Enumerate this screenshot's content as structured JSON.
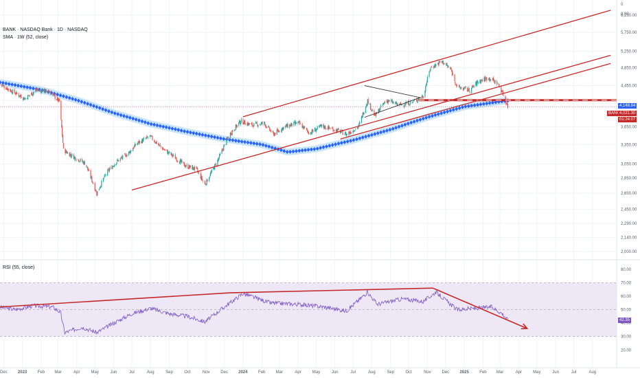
{
  "header": {
    "symbol_line": "BANK · NASDAQ Bank · 1D · NASDAQ",
    "sma_line": "SMA · 1W (52, close)",
    "rsi_line": "RSI (55, close)"
  },
  "badges": {
    "level_price": "4,148.84",
    "symbol": "BANK",
    "last_price": "4,021.30",
    "countdown": "01:24:07",
    "rsi_value": "42.35"
  },
  "colors": {
    "candle_up": "#26a69a",
    "candle_down": "#ef5350",
    "sma": "#2962ff",
    "sma_halo": "#bbdefb",
    "trendline": "#c62828",
    "triangle": "#212121",
    "rsi_line": "#7e57c2",
    "rsi_band": "#ede7f6",
    "grid": "#f0f3fa",
    "axis_text": "#5a5e6b"
  },
  "chart_data": [
    {
      "type": "candlestick",
      "title": "BANK · NASDAQ Bank · 1D · NASDAQ",
      "y_scale": "log",
      "price_ticks": [
        "6,250.00",
        "5,750.00",
        "5,250.00",
        "4,850.00",
        "4,450.00",
        "4,148.84",
        "4,021.30",
        "3,650.00",
        "3,350.00",
        "3,050.00",
        "2,850.00",
        "2,650.00",
        "2,450.00",
        "2,290.00",
        "2,140.00",
        "2,000.00",
        "0.00"
      ],
      "x_ticks": [
        "Dec",
        "2023",
        "Feb",
        "Mar",
        "Apr",
        "May",
        "Jun",
        "Jul",
        "Aug",
        "Sep",
        "Oct",
        "Nov",
        "Dec",
        "2024",
        "Feb",
        "Mar",
        "Apr",
        "May",
        "Jun",
        "Jul",
        "Aug",
        "Sep",
        "Oct",
        "Nov",
        "Dec",
        "2025",
        "Feb",
        "Mar",
        "Apr",
        "May",
        "Jun",
        "Jul",
        "Aug"
      ],
      "x_months": [
        "2022-12",
        "2023-01",
        "2023-02",
        "2023-03",
        "2023-04",
        "2023-05",
        "2023-06",
        "2023-07",
        "2023-08",
        "2023-09",
        "2023-10",
        "2023-11",
        "2023-12",
        "2024-01",
        "2024-02",
        "2024-03",
        "2024-04",
        "2024-05",
        "2024-06",
        "2024-07",
        "2024-08",
        "2024-09",
        "2024-10",
        "2024-11",
        "2024-12",
        "2025-01",
        "2025-02",
        "2025-03",
        "2025-04",
        "2025-05",
        "2025-06",
        "2025-07",
        "2025-08"
      ],
      "close_path": [
        [
          "2022-11-25",
          4480
        ],
        [
          "2022-12-15",
          4330
        ],
        [
          "2023-01-05",
          4180
        ],
        [
          "2023-01-25",
          4360
        ],
        [
          "2023-02-15",
          4320
        ],
        [
          "2023-03-03",
          4120
        ],
        [
          "2023-03-10",
          3260
        ],
        [
          "2023-03-28",
          3150
        ],
        [
          "2023-04-15",
          3060
        ],
        [
          "2023-05-04",
          2650
        ],
        [
          "2023-05-20",
          2920
        ],
        [
          "2023-06-05",
          3080
        ],
        [
          "2023-06-25",
          3210
        ],
        [
          "2023-07-10",
          3370
        ],
        [
          "2023-07-31",
          3480
        ],
        [
          "2023-08-20",
          3290
        ],
        [
          "2023-09-10",
          3150
        ],
        [
          "2023-09-28",
          3020
        ],
        [
          "2023-10-15",
          2980
        ],
        [
          "2023-10-30",
          2760
        ],
        [
          "2023-11-20",
          3100
        ],
        [
          "2023-12-10",
          3520
        ],
        [
          "2023-12-28",
          3750
        ],
        [
          "2024-01-15",
          3680
        ],
        [
          "2024-02-05",
          3710
        ],
        [
          "2024-02-20",
          3520
        ],
        [
          "2024-03-10",
          3650
        ],
        [
          "2024-04-01",
          3720
        ],
        [
          "2024-04-20",
          3540
        ],
        [
          "2024-05-10",
          3660
        ],
        [
          "2024-06-01",
          3600
        ],
        [
          "2024-06-20",
          3520
        ],
        [
          "2024-07-10",
          3650
        ],
        [
          "2024-07-25",
          4140
        ],
        [
          "2024-08-06",
          3840
        ],
        [
          "2024-08-25",
          4150
        ],
        [
          "2024-09-15",
          4050
        ],
        [
          "2024-10-05",
          4100
        ],
        [
          "2024-10-25",
          4230
        ],
        [
          "2024-11-06",
          4850
        ],
        [
          "2024-11-25",
          5000
        ],
        [
          "2024-12-10",
          4800
        ],
        [
          "2024-12-20",
          4420
        ],
        [
          "2025-01-10",
          4350
        ],
        [
          "2025-01-25",
          4550
        ],
        [
          "2025-02-10",
          4620
        ],
        [
          "2025-02-25",
          4500
        ],
        [
          "2025-03-05",
          4300
        ],
        [
          "2025-03-14",
          4021.3
        ]
      ],
      "sma_1w_52": [
        [
          "2022-11-25",
          4520
        ],
        [
          "2023-02-01",
          4360
        ],
        [
          "2023-04-01",
          4150
        ],
        [
          "2023-06-01",
          3900
        ],
        [
          "2023-08-01",
          3700
        ],
        [
          "2023-10-01",
          3560
        ],
        [
          "2023-12-01",
          3440
        ],
        [
          "2024-02-01",
          3350
        ],
        [
          "2024-03-15",
          3230
        ],
        [
          "2024-05-01",
          3280
        ],
        [
          "2024-07-01",
          3420
        ],
        [
          "2024-09-01",
          3600
        ],
        [
          "2024-11-01",
          3820
        ],
        [
          "2025-01-01",
          4020
        ],
        [
          "2025-03-14",
          4140
        ]
      ],
      "horizontal_level": 4148.84,
      "channel_lines": [
        {
          "from": [
            "2024-01-01",
            3830
          ],
          "to": [
            "2025-08-31",
            6400
          ]
        },
        {
          "from": [
            "2023-07-01",
            2690
          ],
          "to": [
            "2025-08-31",
            5150
          ]
        },
        {
          "from": [
            "2024-06-10",
            3440
          ],
          "to": [
            "2025-08-31",
            4950
          ]
        }
      ],
      "triangle_lines": [
        {
          "from": [
            "2024-07-20",
            4450
          ],
          "to": [
            "2024-10-20",
            4200
          ]
        },
        {
          "from": [
            "2024-07-20",
            3820
          ],
          "to": [
            "2024-10-20",
            4200
          ]
        }
      ]
    },
    {
      "type": "line",
      "title": "RSI (55, close)",
      "series": [
        {
          "name": "RSI (55, close)",
          "last": 42.35
        }
      ],
      "y_ticks": [
        80,
        70,
        60,
        50,
        40,
        30,
        20
      ],
      "ylim": [
        12,
        86
      ],
      "band": [
        30,
        70
      ],
      "rsi_path": [
        [
          "2022-11-25",
          52
        ],
        [
          "2022-12-20",
          50
        ],
        [
          "2023-01-20",
          53
        ],
        [
          "2023-02-20",
          52
        ],
        [
          "2023-03-05",
          48
        ],
        [
          "2023-03-12",
          33
        ],
        [
          "2023-04-10",
          37
        ],
        [
          "2023-05-04",
          33
        ],
        [
          "2023-06-01",
          40
        ],
        [
          "2023-07-01",
          47
        ],
        [
          "2023-08-01",
          51
        ],
        [
          "2023-09-01",
          47
        ],
        [
          "2023-10-01",
          45
        ],
        [
          "2023-10-30",
          41
        ],
        [
          "2023-12-01",
          52
        ],
        [
          "2024-01-01",
          62
        ],
        [
          "2024-02-15",
          55
        ],
        [
          "2024-04-01",
          54
        ],
        [
          "2024-05-15",
          52
        ],
        [
          "2024-06-20",
          49
        ],
        [
          "2024-07-25",
          63
        ],
        [
          "2024-08-10",
          54
        ],
        [
          "2024-09-20",
          58
        ],
        [
          "2024-10-25",
          56
        ],
        [
          "2024-11-15",
          63
        ],
        [
          "2024-12-20",
          50
        ],
        [
          "2025-01-20",
          51
        ],
        [
          "2025-02-15",
          52
        ],
        [
          "2025-03-05",
          47
        ],
        [
          "2025-03-14",
          42.35
        ]
      ],
      "trend_lines": [
        {
          "from": [
            "2022-11-25",
            52
          ],
          "to": [
            "2023-12-10",
            62.5
          ]
        },
        {
          "from": [
            "2023-12-10",
            62.5
          ],
          "to": [
            "2024-11-10",
            66
          ]
        },
        {
          "from": [
            "2024-11-10",
            66
          ],
          "to": [
            "2025-04-15",
            36
          ],
          "arrow": true
        }
      ]
    }
  ]
}
